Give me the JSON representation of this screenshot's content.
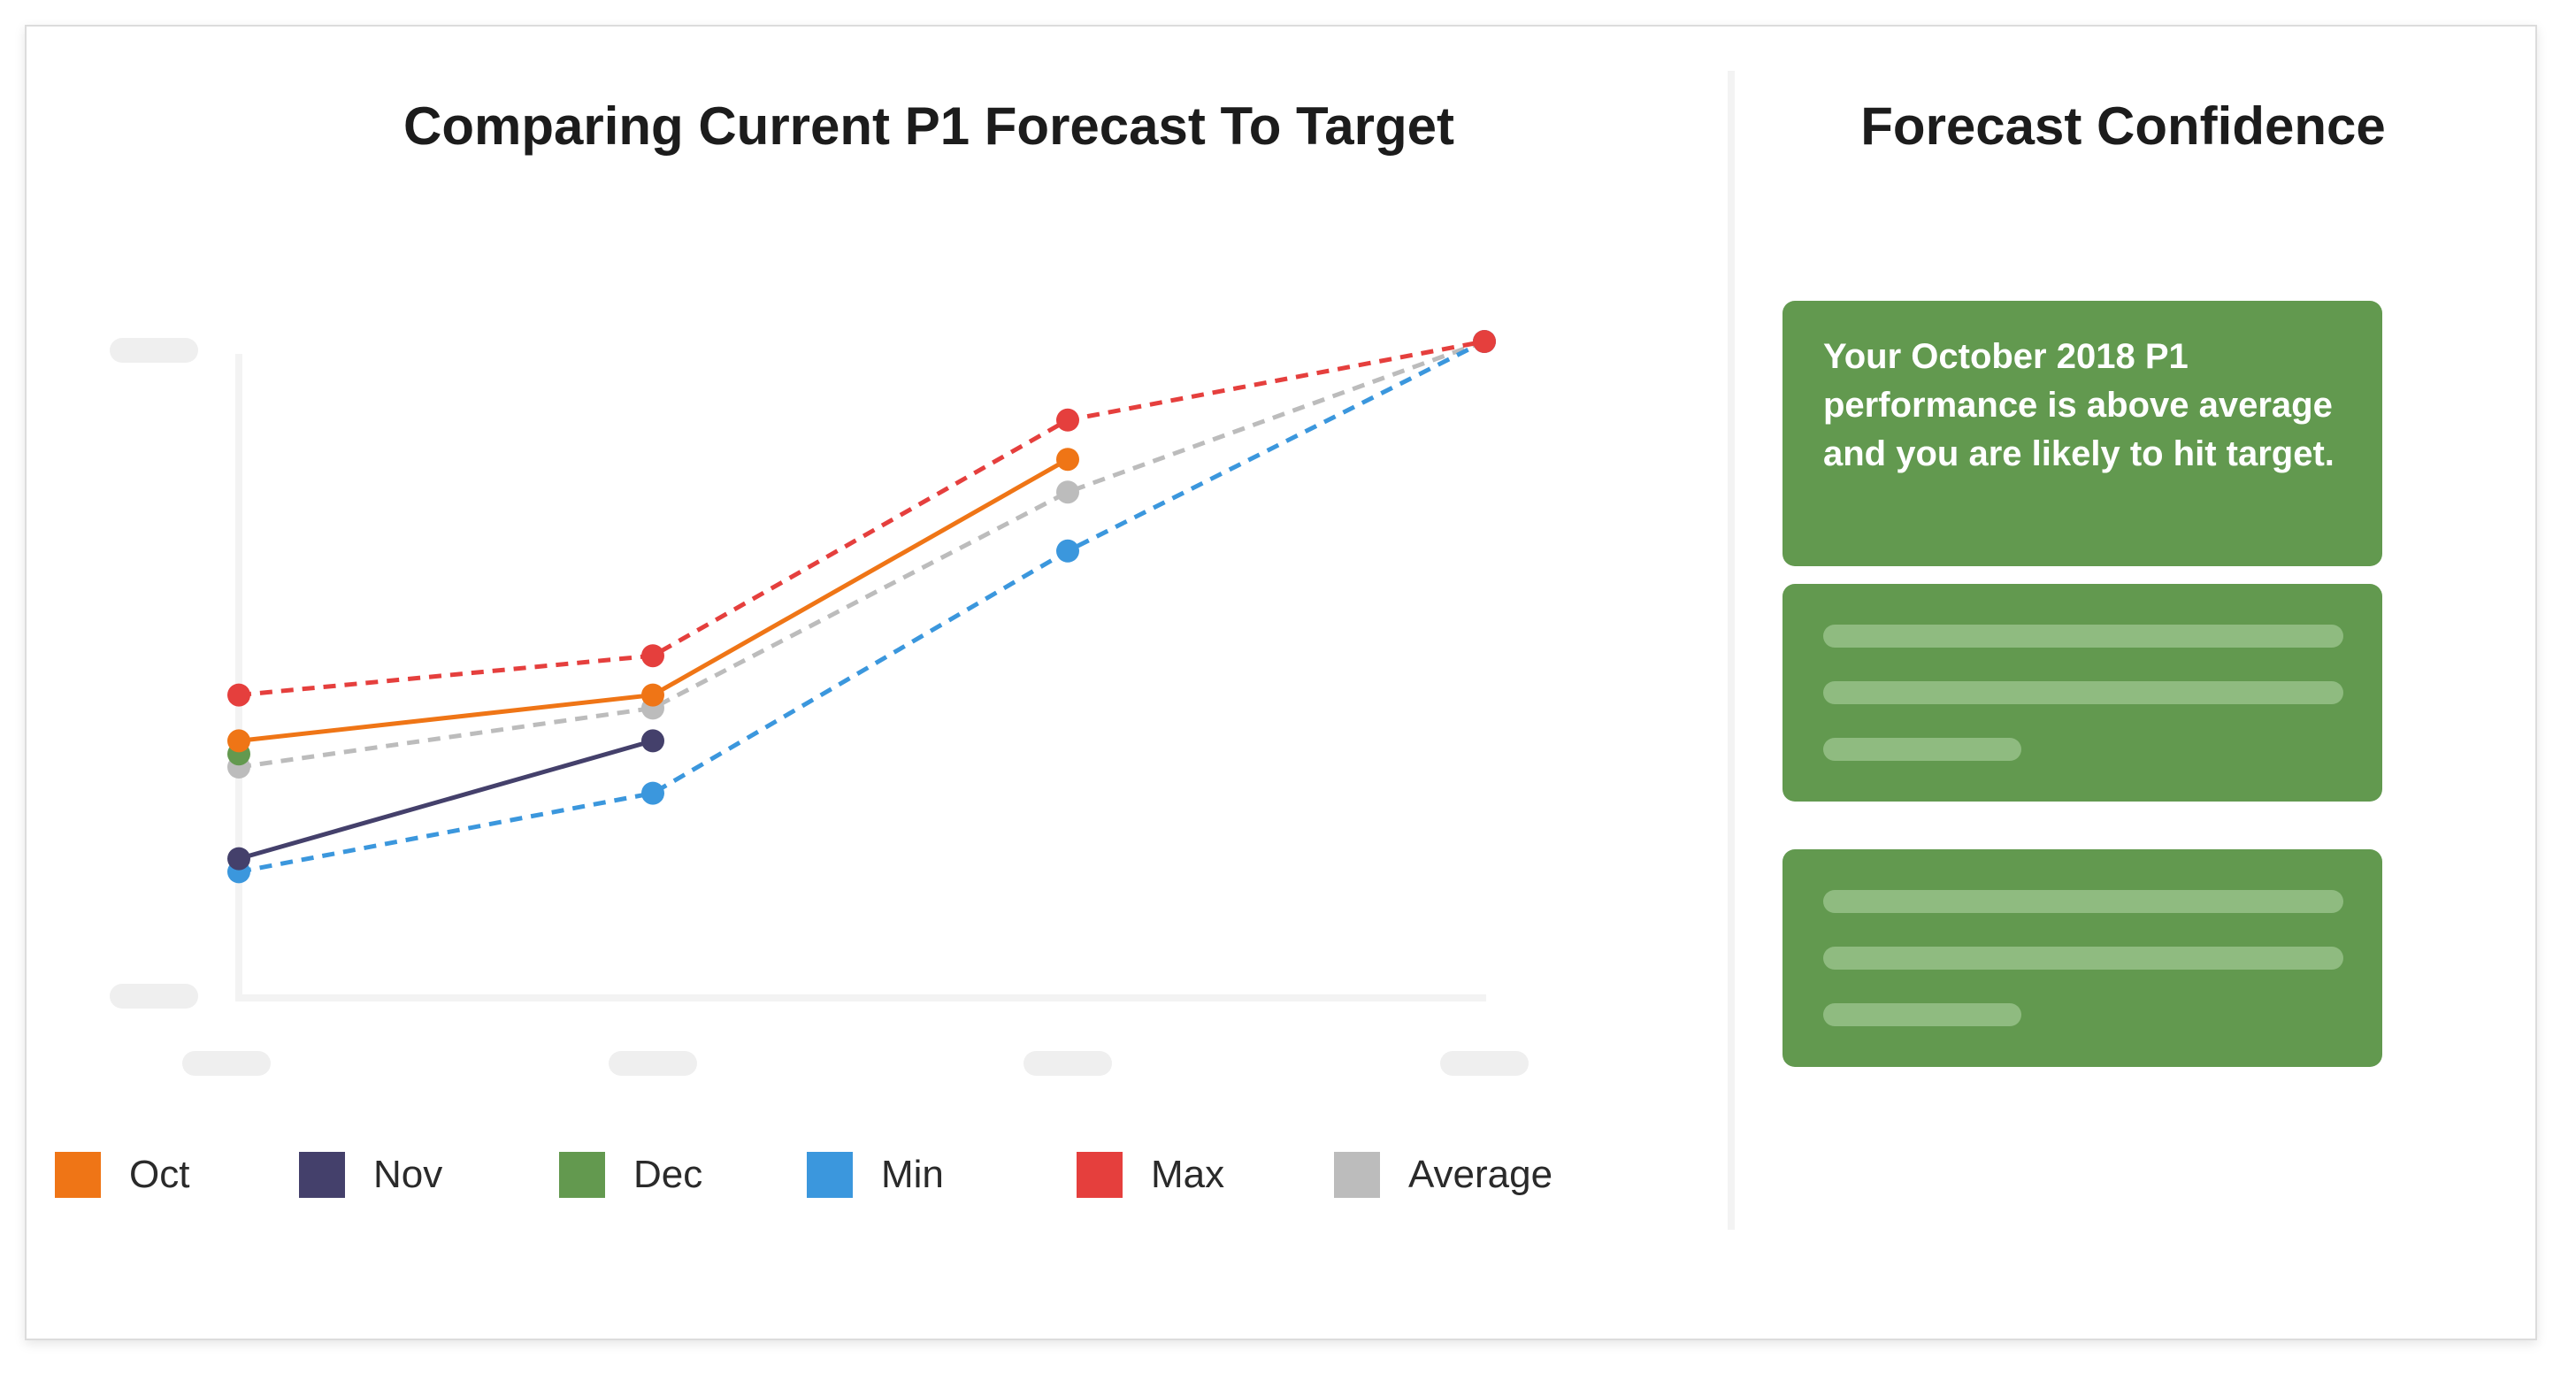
{
  "chart_title": "Comparing Current P1 Forecast To Target",
  "panel_title": "Forecast Confidence",
  "confidence": {
    "message": "Your October 2018 P1 performance is above average and you are likely to hit target."
  },
  "colors": {
    "Oct": "#ef7516",
    "Nov": "#44406b",
    "Dec": "#63994f",
    "Min": "#3b97dd",
    "Max": "#e53f3d",
    "Average": "#bcbcbc",
    "panel_green": "#62994f"
  },
  "legend": [
    "Oct",
    "Nov",
    "Dec",
    "Min",
    "Max",
    "Average"
  ],
  "chart_data": {
    "type": "line",
    "title": "Comparing Current P1 Forecast To Target",
    "x_categories": 4,
    "x": [
      1,
      2,
      3,
      4
    ],
    "ylim": [
      0,
      100
    ],
    "grid": false,
    "legend_position": "bottom",
    "series": [
      {
        "name": "Oct",
        "style": "solid",
        "values": [
          39,
          46,
          82,
          null
        ]
      },
      {
        "name": "Nov",
        "style": "solid",
        "values": [
          21,
          39,
          null,
          null
        ]
      },
      {
        "name": "Dec",
        "style": "solid",
        "values": [
          37,
          null,
          null,
          null
        ]
      },
      {
        "name": "Min",
        "style": "dashed",
        "values": [
          19,
          31,
          68,
          100
        ]
      },
      {
        "name": "Max",
        "style": "dashed",
        "values": [
          46,
          52,
          88,
          100
        ]
      },
      {
        "name": "Average",
        "style": "dashed",
        "values": [
          35,
          44,
          77,
          100
        ]
      }
    ]
  }
}
